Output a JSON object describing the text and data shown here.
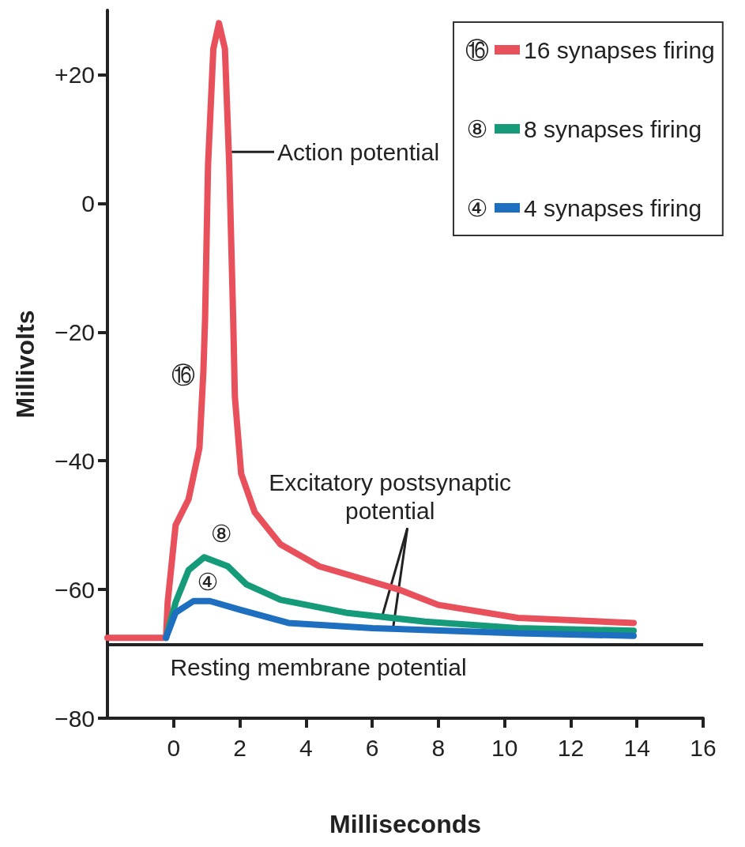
{
  "chart_data": {
    "type": "line",
    "xlabel": "Milliseconds",
    "ylabel": "Millivolts",
    "xlim": [
      -2,
      16
    ],
    "xticks": [
      0,
      2,
      4,
      6,
      8,
      10,
      12,
      14,
      16
    ],
    "ylim": [
      -80,
      30
    ],
    "yticks": [
      {
        "value": -80,
        "label": "−80"
      },
      {
        "value": -60,
        "label": "−60"
      },
      {
        "value": -40,
        "label": "−40"
      },
      {
        "value": -20,
        "label": "−20"
      },
      0,
      {
        "value": 20,
        "label": "+20"
      }
    ],
    "legend": "top right",
    "series": [
      {
        "name": "16 synapses firing",
        "color": "#e8505b",
        "x": [
          -2,
          -0.23,
          -0.18,
          0.06,
          0.45,
          0.78,
          0.9,
          0.95,
          1.04,
          1.2,
          1.37,
          1.55,
          1.68,
          1.8,
          1.85,
          2.04,
          2.45,
          3.23,
          4.4,
          6.8,
          8,
          10.4,
          13.9
        ],
        "values": [
          -67.5,
          -67.5,
          -62,
          -50,
          -46,
          -38,
          -26,
          -18,
          6,
          24,
          28,
          24,
          6,
          -18,
          -30,
          -42,
          -48,
          -53,
          -56.4,
          -60,
          -62.4,
          -64.4,
          -65.2
        ]
      },
      {
        "name": "8 synapses firing",
        "color": "#159a7a",
        "x": [
          -0.23,
          0.06,
          0.45,
          0.92,
          1.64,
          2.2,
          3.23,
          5.2,
          7.6,
          10.4,
          13.9
        ],
        "values": [
          -67.5,
          -62,
          -57,
          -55,
          -56.4,
          -59.2,
          -61.6,
          -63.6,
          -65,
          -66,
          -66.4
        ]
      },
      {
        "name": "4 synapses firing",
        "color": "#1f6fc0",
        "x": [
          -0.23,
          0.06,
          0.6,
          1.1,
          2.04,
          3.47,
          6,
          10.4,
          13.9
        ],
        "values": [
          -67.5,
          -63.6,
          -61.8,
          -61.8,
          -63.2,
          -65.2,
          -66,
          -66.8,
          -67.2
        ]
      }
    ],
    "ref_lines": [
      {
        "axis": "y",
        "value": -68.5,
        "label": "Resting membrane potential",
        "color": "#222222"
      }
    ],
    "annotations": [
      "⑯",
      "⑧",
      "④",
      {
        "text": "Action potential",
        "x": 1.7,
        "y": 8
      },
      {
        "text": "Excitatory postsynaptic\npotential",
        "x": 6.3,
        "y": -64.2
      }
    ]
  }
}
